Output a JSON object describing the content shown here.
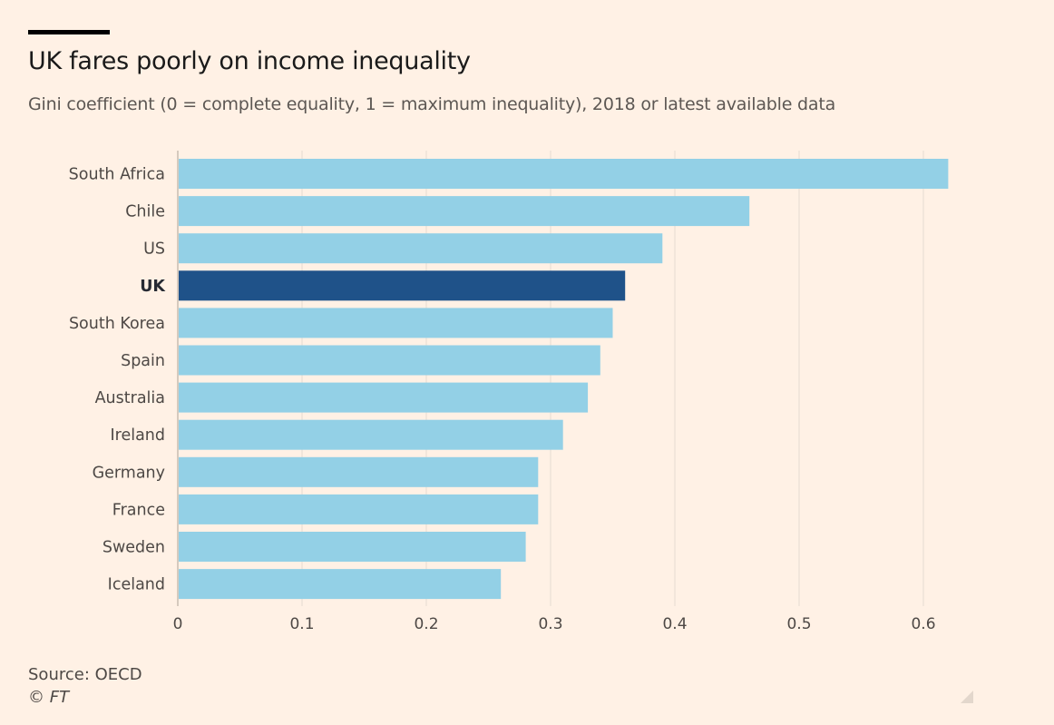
{
  "header": {
    "title": "UK fares poorly on income inequality",
    "subtitle": "Gini coefficient (0 = complete equality, 1 = maximum inequality), 2018 or latest available data"
  },
  "footer": {
    "source": "Source: OECD",
    "credit": "© FT"
  },
  "colors": {
    "background": "#fff1e5",
    "bar": "#93d0e6",
    "highlight": "#1f5289",
    "grid": "#e6dbd1",
    "label": "#4d4845",
    "highlight_label": "#262a33"
  },
  "chart_data": {
    "type": "bar",
    "orientation": "horizontal",
    "title": "UK fares poorly on income inequality",
    "subtitle": "Gini coefficient (0 = complete equality, 1 = maximum inequality), 2018 or latest available data",
    "categories": [
      "South Africa",
      "Chile",
      "US",
      "UK",
      "South Korea",
      "Spain",
      "Australia",
      "Ireland",
      "Germany",
      "France",
      "Sweden",
      "Iceland"
    ],
    "values": [
      0.62,
      0.46,
      0.39,
      0.36,
      0.35,
      0.34,
      0.33,
      0.31,
      0.29,
      0.29,
      0.28,
      0.26
    ],
    "highlighted": "UK",
    "xticks": [
      0,
      0.1,
      0.2,
      0.3,
      0.4,
      0.5,
      0.6
    ],
    "xtick_labels": [
      "0",
      "0.1",
      "0.2",
      "0.3",
      "0.4",
      "0.5",
      "0.6"
    ],
    "xlim": [
      0,
      0.65
    ],
    "grid": true,
    "legend": "none"
  }
}
